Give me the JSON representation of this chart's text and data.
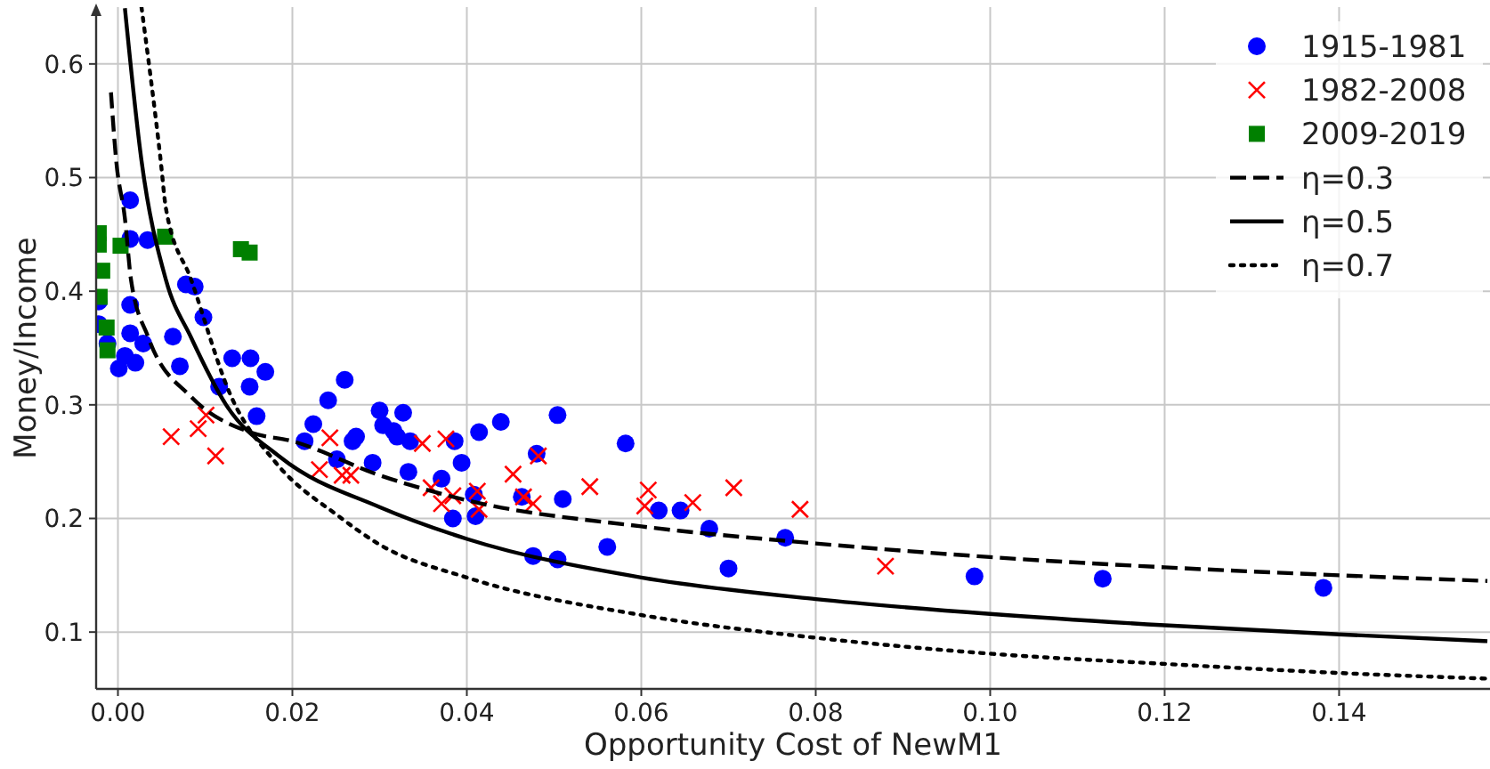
{
  "chart_data": {
    "type": "scatter",
    "xlabel": "Opportunity Cost of NewM1",
    "ylabel": "Money/Income",
    "xlim": [
      -0.0025,
      0.1573
    ],
    "ylim": [
      0.05,
      0.65
    ],
    "xticks": [
      {
        "value": 0,
        "label": "0.00"
      },
      {
        "value": 0.02,
        "label": "0.02"
      },
      {
        "value": 0.04,
        "label": "0.04"
      },
      {
        "value": 0.06,
        "label": "0.06"
      },
      {
        "value": 0.08,
        "label": "0.08"
      },
      {
        "value": 0.1,
        "label": "0.10"
      },
      {
        "value": 0.12,
        "label": "0.12"
      },
      {
        "value": 0.14,
        "label": "0.14"
      }
    ],
    "yticks": [
      0.1,
      0.2,
      0.3,
      0.4,
      0.5,
      0.6
    ],
    "grid": true,
    "legend": "top right",
    "series": [
      {
        "name": "1915-1981",
        "marker": "circle",
        "color": "#0000ff",
        "x": [
          0.0014,
          0.0014,
          0.0034,
          0.0078,
          0.0088,
          0.0098,
          0.0014,
          -0.0022,
          -0.0022,
          0.0014,
          -0.0012,
          0.0029,
          0.0063,
          0.0008,
          0.0001,
          0.002,
          0.0071,
          0.0131,
          0.0152,
          0.0151,
          0.0169,
          0.0159,
          0.0116,
          0.0241,
          0.0224,
          0.0214,
          0.0251,
          0.026,
          0.0273,
          0.0269,
          0.0292,
          0.03,
          0.0304,
          0.0316,
          0.032,
          0.0327,
          0.0335,
          0.0333,
          0.0371,
          0.0384,
          0.0386,
          0.0394,
          0.0414,
          0.041,
          0.0408,
          0.0439,
          0.048,
          0.0463,
          0.0476,
          0.0504,
          0.0504,
          0.051,
          0.0561,
          0.0582,
          0.062,
          0.0645,
          0.0678,
          0.07,
          0.0765,
          0.0982,
          0.1129,
          0.1382
        ],
        "values": [
          0.48,
          0.446,
          0.445,
          0.406,
          0.404,
          0.377,
          0.388,
          0.391,
          0.371,
          0.363,
          0.354,
          0.354,
          0.36,
          0.343,
          0.332,
          0.337,
          0.334,
          0.341,
          0.341,
          0.316,
          0.329,
          0.29,
          0.316,
          0.304,
          0.283,
          0.268,
          0.252,
          0.322,
          0.272,
          0.268,
          0.249,
          0.295,
          0.282,
          0.277,
          0.272,
          0.293,
          0.268,
          0.241,
          0.235,
          0.2,
          0.268,
          0.249,
          0.276,
          0.202,
          0.221,
          0.285,
          0.257,
          0.219,
          0.167,
          0.164,
          0.291,
          0.217,
          0.175,
          0.266,
          0.207,
          0.207,
          0.191,
          0.156,
          0.183,
          0.149,
          0.147,
          0.139
        ]
      },
      {
        "name": "1982-2008",
        "marker": "cross",
        "color": "#ff0000",
        "x": [
          0.0061,
          0.0092,
          0.0101,
          0.0112,
          0.0243,
          0.0231,
          0.0257,
          0.0267,
          0.0349,
          0.0376,
          0.0359,
          0.0371,
          0.0384,
          0.0412,
          0.0414,
          0.0453,
          0.0465,
          0.0476,
          0.0482,
          0.0541,
          0.0608,
          0.0604,
          0.0659,
          0.0706,
          0.0782,
          0.088
        ],
        "values": [
          0.272,
          0.279,
          0.291,
          0.255,
          0.271,
          0.243,
          0.238,
          0.238,
          0.266,
          0.27,
          0.227,
          0.213,
          0.22,
          0.224,
          0.208,
          0.239,
          0.219,
          0.213,
          0.255,
          0.228,
          0.225,
          0.211,
          0.214,
          0.227,
          0.208,
          0.158
        ]
      },
      {
        "name": "2009-2019",
        "marker": "square",
        "color": "#008000",
        "x": [
          -0.0022,
          -0.0022,
          -0.0018,
          -0.0021,
          -0.0013,
          -0.0012,
          0.0003,
          0.0054,
          0.0141,
          0.0151
        ],
        "values": [
          0.451,
          0.441,
          0.418,
          0.395,
          0.368,
          0.348,
          0.44,
          0.448,
          0.437,
          0.434
        ]
      },
      {
        "name": "η=0.3",
        "type": "line",
        "line_style": "dashed",
        "color": "#000000",
        "x": [
          -0.0008,
          -0.0002,
          0.0008,
          0.0015,
          0.0035,
          0.0084,
          0.0151,
          0.02,
          0.03,
          0.04,
          0.06,
          0.08,
          0.1,
          0.12,
          0.14,
          0.157
        ],
        "values": [
          0.575,
          0.515,
          0.464,
          0.41,
          0.359,
          0.307,
          0.276,
          0.268,
          0.238,
          0.216,
          0.193,
          0.178,
          0.166,
          0.157,
          0.15,
          0.145
        ]
      },
      {
        "name": "η=0.5",
        "type": "line",
        "line_style": "solid",
        "color": "#000000",
        "x": [
          0.0008,
          0.0027,
          0.0055,
          0.0084,
          0.0124,
          0.0186,
          0.03,
          0.04,
          0.06,
          0.08,
          0.1,
          0.12,
          0.14,
          0.157
        ],
        "values": [
          0.649,
          0.515,
          0.41,
          0.359,
          0.3,
          0.254,
          0.21,
          0.182,
          0.148,
          0.129,
          0.116,
          0.106,
          0.098,
          0.092
        ]
      },
      {
        "name": "η=0.7",
        "type": "line",
        "line_style": "dotted",
        "color": "#000000",
        "x": [
          0.0027,
          0.0049,
          0.0055,
          0.0084,
          0.013,
          0.018,
          0.0253,
          0.03,
          0.04,
          0.06,
          0.08,
          0.1,
          0.12,
          0.14,
          0.157
        ],
        "values": [
          0.65,
          0.515,
          0.473,
          0.41,
          0.307,
          0.25,
          0.202,
          0.177,
          0.148,
          0.115,
          0.095,
          0.081,
          0.072,
          0.064,
          0.059
        ]
      }
    ]
  }
}
